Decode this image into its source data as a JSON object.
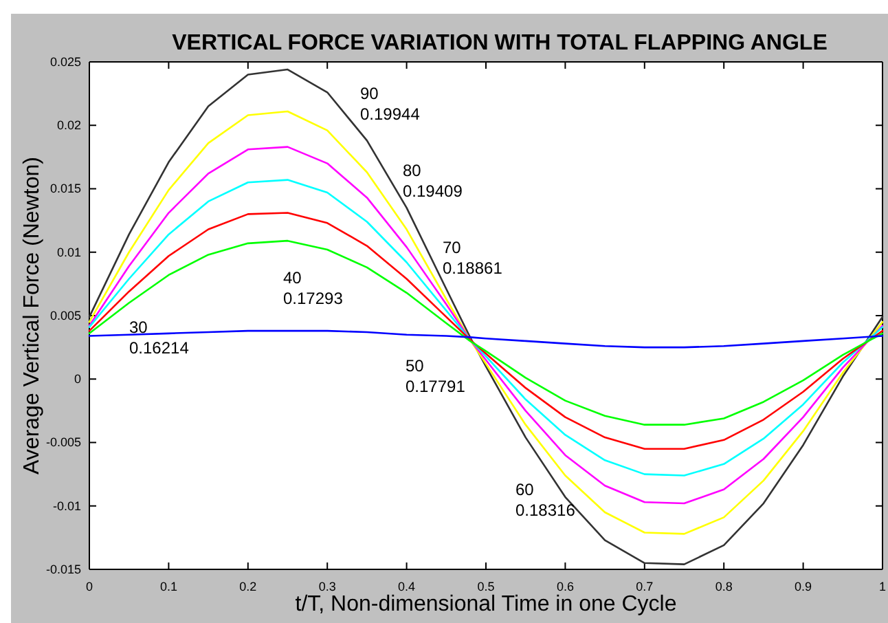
{
  "chart_data": {
    "type": "line",
    "title": "VERTICAL FORCE VARIATION WITH TOTAL FLAPPING ANGLE",
    "xlabel": "t/T, Non-dimensional Time in one Cycle",
    "ylabel": "Average Vertical Force (Newton)",
    "x": [
      0,
      0.05,
      0.1,
      0.15,
      0.2,
      0.25,
      0.3,
      0.35,
      0.4,
      0.45,
      0.48,
      0.5,
      0.55,
      0.6,
      0.65,
      0.7,
      0.75,
      0.8,
      0.85,
      0.9,
      0.95,
      1
    ],
    "series": [
      {
        "color": "#333333",
        "values": [
          0.0049,
          0.0114,
          0.0171,
          0.0215,
          0.024,
          0.0244,
          0.0226,
          0.0188,
          0.0135,
          0.0071,
          0.0033,
          0.001,
          -0.0046,
          -0.0093,
          -0.0127,
          -0.0145,
          -0.0146,
          -0.0131,
          -0.0098,
          -0.0052,
          0.0002,
          0.0049
        ]
      },
      {
        "color": "#ffff00",
        "values": [
          0.0045,
          0.01,
          0.0149,
          0.0186,
          0.0208,
          0.0211,
          0.0196,
          0.0163,
          0.0118,
          0.0063,
          0.0031,
          0.0012,
          -0.0036,
          -0.0076,
          -0.0105,
          -0.0121,
          -0.0122,
          -0.0109,
          -0.008,
          -0.0041,
          0.0005,
          0.0045
        ]
      },
      {
        "color": "#ff00ff",
        "values": [
          0.0042,
          0.0089,
          0.0131,
          0.0162,
          0.0181,
          0.0183,
          0.017,
          0.0143,
          0.0104,
          0.0059,
          0.0031,
          0.0015,
          -0.0025,
          -0.006,
          -0.0084,
          -0.0097,
          -0.0098,
          -0.0087,
          -0.0063,
          -0.003,
          0.0009,
          0.0042
        ]
      },
      {
        "color": "#00ffff",
        "values": [
          0.0041,
          0.0079,
          0.0114,
          0.014,
          0.0155,
          0.0157,
          0.0147,
          0.0124,
          0.0092,
          0.0054,
          0.0031,
          0.0018,
          -0.0016,
          -0.0044,
          -0.0064,
          -0.0075,
          -0.0076,
          -0.0067,
          -0.0047,
          -0.002,
          0.0013,
          0.0041
        ]
      },
      {
        "color": "#ff0000",
        "values": [
          0.0038,
          0.0069,
          0.0097,
          0.0118,
          0.013,
          0.0131,
          0.0123,
          0.0105,
          0.0079,
          0.0049,
          0.0031,
          0.002,
          -0.0007,
          -0.003,
          -0.0046,
          -0.0055,
          -0.0055,
          -0.0048,
          -0.0032,
          -0.001,
          0.0016,
          0.0038
        ]
      },
      {
        "color": "#00ff00",
        "values": [
          0.0036,
          0.006,
          0.0082,
          0.0098,
          0.0107,
          0.0109,
          0.0102,
          0.0088,
          0.0068,
          0.0044,
          0.003,
          0.0022,
          0.0001,
          -0.0017,
          -0.0029,
          -0.0036,
          -0.0036,
          -0.0031,
          -0.0018,
          -0.0001,
          0.0019,
          0.0036
        ]
      },
      {
        "color": "#0000ff",
        "values": [
          0.0034,
          0.0035,
          0.0036,
          0.0037,
          0.0038,
          0.0038,
          0.0038,
          0.0037,
          0.0035,
          0.0034,
          0.0033,
          0.0032,
          0.003,
          0.0028,
          0.0026,
          0.0025,
          0.0025,
          0.0026,
          0.0028,
          0.003,
          0.0032,
          0.0034
        ]
      }
    ],
    "xlim": [
      0,
      1
    ],
    "xticks": [
      0,
      0.1,
      0.2,
      0.3,
      0.4,
      0.5,
      0.6,
      0.7,
      0.8,
      0.9,
      1
    ],
    "ylim": [
      -0.015,
      0.025
    ],
    "yticks": [
      -0.015,
      -0.01,
      -0.005,
      0,
      0.005,
      0.01,
      0.015,
      0.02,
      0.025
    ],
    "grid": false,
    "annotations": [
      "90\n0.19944",
      "80\n0.19409",
      "70\n0.18861",
      "40\n0.17293",
      "30\n0.16214",
      "50\n0.17791",
      "60\n0.18316"
    ]
  }
}
